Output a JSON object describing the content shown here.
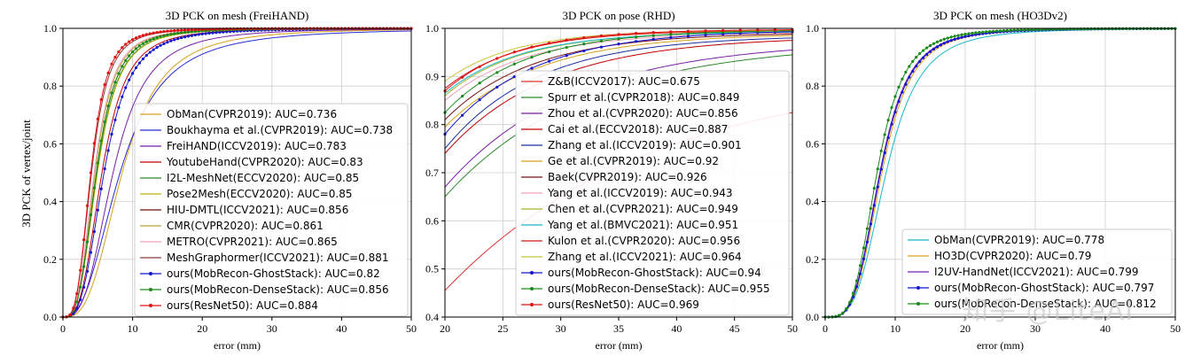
{
  "figure": {
    "ylabel_shared": "3D PCK of vertex/joint",
    "watermark": "知乎 @LiteAI"
  },
  "chart_data": [
    {
      "type": "line",
      "title": "3D PCK on mesh (FreiHAND)",
      "xlabel": "error (mm)",
      "ylabel": "3D PCK of vertex/joint",
      "xlim": [
        0,
        50
      ],
      "ylim": [
        0,
        1.0
      ],
      "xticks": [
        0,
        10,
        20,
        30,
        40,
        50
      ],
      "yticks": [
        0.0,
        0.2,
        0.4,
        0.6,
        0.8,
        1.0
      ],
      "ytick_labels": [
        "0.0",
        "0.2",
        "0.4",
        "0.6",
        "0.8",
        "1.0"
      ],
      "grid": true,
      "legend_position": "lower-right",
      "series": [
        {
          "name": "ObMan(CVPR2019): AUC=0.736",
          "color": "#d9a11a",
          "marker": false,
          "x50": 8.5,
          "k": 3.0
        },
        {
          "name": "Boukhayma et al.(CVPR2019): AUC=0.738",
          "color": "#2b2bd6",
          "marker": false,
          "x50": 8.2,
          "k": 2.6
        },
        {
          "name": "FreiHAND(ICCV2019): AUC=0.783",
          "color": "#7a1fa6",
          "marker": false,
          "x50": 7.2,
          "k": 3.0
        },
        {
          "name": "YoutubeHand(CVPR2020): AUC=0.83",
          "color": "#c00000",
          "marker": false,
          "x50": 5.6,
          "k": 3.2
        },
        {
          "name": "I2L-MeshNet(ECCV2020): AUC=0.85",
          "color": "#2a8a2a",
          "marker": false,
          "x50": 4.9,
          "k": 3.2
        },
        {
          "name": "Pose2Mesh(ECCV2020): AUC=0.85",
          "color": "#b8b40a",
          "marker": false,
          "x50": 4.95,
          "k": 3.2
        },
        {
          "name": "HIU-DMTL(ICCV2021): AUC=0.856",
          "color": "#6b1010",
          "marker": false,
          "x50": 4.8,
          "k": 3.3
        },
        {
          "name": "CMR(CVPR2020): AUC=0.861",
          "color": "#b5a43a",
          "marker": false,
          "x50": 4.6,
          "k": 3.3
        },
        {
          "name": "METRO(CVPR2021): AUC=0.865",
          "color": "#f0a0b8",
          "marker": false,
          "x50": 4.5,
          "k": 3.3
        },
        {
          "name": "MeshGraphormer(ICCV2021): AUC=0.881",
          "color": "#8b3a3a",
          "marker": false,
          "x50": 4.1,
          "k": 3.4
        },
        {
          "name": "ours(MobRecon-GhostStack): AUC=0.82",
          "color": "#1414d0",
          "marker": true,
          "x50": 5.9,
          "k": 3.2
        },
        {
          "name": "ours(MobRecon-DenseStack): AUC=0.856",
          "color": "#1a8a1a",
          "marker": true,
          "x50": 4.8,
          "k": 3.3
        },
        {
          "name": "ours(ResNet50): AUC=0.884",
          "color": "#e01010",
          "marker": true,
          "x50": 4.0,
          "k": 3.5
        }
      ]
    },
    {
      "type": "line",
      "title": "3D PCK on pose (RHD)",
      "xlabel": "error (mm)",
      "ylabel": "",
      "xlim": [
        20,
        50
      ],
      "ylim": [
        0.4,
        1.0
      ],
      "xticks": [
        20,
        25,
        30,
        35,
        40,
        45,
        50
      ],
      "yticks": [
        0.4,
        0.5,
        0.6,
        0.7,
        0.8,
        0.9,
        1.0
      ],
      "ytick_labels": [
        "0.4",
        "0.5",
        "0.6",
        "0.7",
        "0.8",
        "0.9",
        "1.0"
      ],
      "grid": true,
      "legend_position": "lower-left",
      "series": [
        {
          "name": "Z&B(ICCV2017): AUC=0.675",
          "color": "#e03030",
          "marker": false,
          "y20": 0.455,
          "y50": 0.825,
          "tau": 18
        },
        {
          "name": "Spurr et al.(CVPR2018): AUC=0.849",
          "color": "#2a8a2a",
          "marker": false,
          "y20": 0.65,
          "y50": 0.945,
          "tau": 12
        },
        {
          "name": "Zhou et al.(CVPR2020): AUC=0.856",
          "color": "#7a1fa6",
          "marker": false,
          "y20": 0.67,
          "y50": 0.955,
          "tau": 11
        },
        {
          "name": "Cai et al.(ECCV2018): AUC=0.887",
          "color": "#c00000",
          "marker": false,
          "y20": 0.74,
          "y50": 0.975,
          "tau": 9
        },
        {
          "name": "Zhang et al.(ICCV2019): AUC=0.901",
          "color": "#1c2fa0",
          "marker": false,
          "y20": 0.75,
          "y50": 0.98,
          "tau": 8
        },
        {
          "name": "Ge et al.(CVPR2019): AUC=0.92",
          "color": "#d9a11a",
          "marker": false,
          "y20": 0.795,
          "y50": 0.985,
          "tau": 8
        },
        {
          "name": "Baek(CVPR2019): AUC=0.926",
          "color": "#7a1010",
          "marker": false,
          "y20": 0.81,
          "y50": 0.988,
          "tau": 7.5
        },
        {
          "name": "Yang et al.(ICCV2019): AUC=0.943",
          "color": "#f0a0b8",
          "marker": false,
          "y20": 0.85,
          "y50": 0.99,
          "tau": 7
        },
        {
          "name": "Chen et al.(CVPR2021): AUC=0.949",
          "color": "#a9b030",
          "marker": false,
          "y20": 0.86,
          "y50": 0.992,
          "tau": 6.5
        },
        {
          "name": "Yang et al.(BMVC2021): AUC=0.951",
          "color": "#17b8c8",
          "marker": false,
          "y20": 0.865,
          "y50": 0.992,
          "tau": 6.5
        },
        {
          "name": "Kulon et al.(CVPR2020): AUC=0.956",
          "color": "#d01818",
          "marker": false,
          "y20": 0.875,
          "y50": 0.995,
          "tau": 6.2
        },
        {
          "name": "Zhang et al.(ICCV2021): AUC=0.964",
          "color": "#c7c53a",
          "marker": false,
          "y20": 0.89,
          "y50": 0.996,
          "tau": 6.0
        },
        {
          "name": "ours(MobRecon-GhostStack): AUC=0.94",
          "color": "#1414d0",
          "marker": true,
          "y20": 0.78,
          "y50": 0.993,
          "tau": 7.5
        },
        {
          "name": "ours(MobRecon-DenseStack): AUC=0.955",
          "color": "#1a8a1a",
          "marker": true,
          "y20": 0.825,
          "y50": 0.995,
          "tau": 6.8
        },
        {
          "name": "ours(ResNet50): AUC=0.969",
          "color": "#e01010",
          "marker": true,
          "y20": 0.87,
          "y50": 0.997,
          "tau": 6.0
        }
      ]
    },
    {
      "type": "line",
      "title": "3D PCK on mesh (HO3Dv2)",
      "xlabel": "error (mm)",
      "ylabel": "",
      "xlim": [
        0,
        50
      ],
      "ylim": [
        0,
        1.0
      ],
      "xticks": [
        0,
        10,
        20,
        30,
        40,
        50
      ],
      "yticks": [
        0.0,
        0.2,
        0.4,
        0.6,
        0.8,
        1.0
      ],
      "ytick_labels": [
        "0.0",
        "0.2",
        "0.4",
        "0.6",
        "0.8",
        "1.0"
      ],
      "grid": true,
      "legend_position": "lower-right",
      "series": [
        {
          "name": "ObMan(CVPR2019): AUC=0.778",
          "color": "#17b8c8",
          "marker": false,
          "x50": 8.7,
          "k": 3.6
        },
        {
          "name": "HO3D(CVPR2020): AUC=0.79",
          "color": "#d9a11a",
          "marker": false,
          "x50": 8.1,
          "k": 3.8
        },
        {
          "name": "I2UV-HandNet(ICCV2021): AUC=0.799",
          "color": "#7a1fa6",
          "marker": false,
          "x50": 7.8,
          "k": 3.8
        },
        {
          "name": "ours(MobRecon-GhostStack): AUC=0.797",
          "color": "#1414d0",
          "marker": true,
          "x50": 7.9,
          "k": 3.8
        },
        {
          "name": "ours(MobRecon-DenseStack): AUC=0.812",
          "color": "#1a8a1a",
          "marker": true,
          "x50": 7.4,
          "k": 3.9
        }
      ]
    }
  ]
}
